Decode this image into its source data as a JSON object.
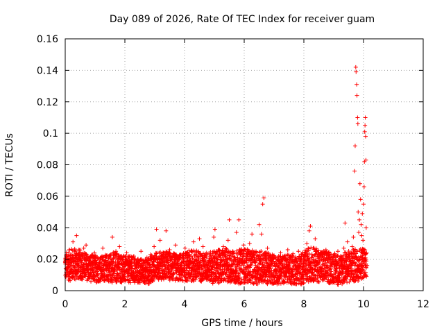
{
  "chart_data": {
    "type": "scatter",
    "title": "Day 089 of 2026, Rate Of TEC Index for receiver guam",
    "xlabel": "GPS time / hours",
    "ylabel": "ROTI / TECUs",
    "xlim": [
      0,
      12
    ],
    "ylim": [
      0,
      0.16
    ],
    "x_ticks": [
      0,
      2,
      4,
      6,
      8,
      10,
      12
    ],
    "x_tick_labels": [
      "0",
      "2",
      "4",
      "6",
      "8",
      "10",
      "12"
    ],
    "y_ticks": [
      0,
      0.02,
      0.04,
      0.06,
      0.08,
      0.1,
      0.12,
      0.14,
      0.16
    ],
    "y_tick_labels": [
      "0",
      "0.02",
      "0.04",
      "0.06",
      "0.08",
      "0.1",
      "0.12",
      "0.14",
      "0.16"
    ],
    "grid": true,
    "marker": "plus",
    "series": [
      {
        "name": "ROTI",
        "color": "#ff0000",
        "points": [
          [
            0.02,
            0.014
          ],
          [
            0.06,
            0.022
          ],
          [
            0.1,
            0.009
          ],
          [
            0.14,
            0.026
          ],
          [
            0.18,
            0.017
          ],
          [
            0.22,
            0.012
          ],
          [
            0.26,
            0.031
          ],
          [
            0.3,
            0.019
          ],
          [
            0.34,
            0.01
          ],
          [
            0.38,
            0.035
          ],
          [
            0.42,
            0.016
          ],
          [
            0.46,
            0.023
          ],
          [
            0.5,
            0.012
          ],
          [
            0.54,
            0.018
          ],
          [
            0.58,
            0.014
          ],
          [
            0.62,
            0.027
          ],
          [
            0.66,
            0.011
          ],
          [
            0.7,
            0.029
          ],
          [
            0.74,
            0.015
          ],
          [
            0.78,
            0.009
          ],
          [
            0.82,
            0.021
          ],
          [
            0.86,
            0.013
          ],
          [
            0.9,
            0.017
          ],
          [
            0.94,
            0.008
          ],
          [
            0.98,
            0.024
          ],
          [
            1.02,
            0.012
          ],
          [
            1.06,
            0.018
          ],
          [
            1.1,
            0.007
          ],
          [
            1.14,
            0.015
          ],
          [
            1.18,
            0.021
          ],
          [
            1.22,
            0.011
          ],
          [
            1.26,
            0.027
          ],
          [
            1.3,
            0.013
          ],
          [
            1.34,
            0.019
          ],
          [
            1.38,
            0.009
          ],
          [
            1.42,
            0.016
          ],
          [
            1.46,
            0.022
          ],
          [
            1.5,
            0.012
          ],
          [
            1.54,
            0.014
          ],
          [
            1.58,
            0.034
          ],
          [
            1.62,
            0.018
          ],
          [
            1.66,
            0.008
          ],
          [
            1.7,
            0.025
          ],
          [
            1.74,
            0.013
          ],
          [
            1.78,
            0.017
          ],
          [
            1.82,
            0.028
          ],
          [
            1.86,
            0.011
          ],
          [
            1.9,
            0.02
          ],
          [
            1.94,
            0.014
          ],
          [
            1.98,
            0.009
          ],
          [
            2.02,
            0.018
          ],
          [
            2.06,
            0.024
          ],
          [
            2.1,
            0.012
          ],
          [
            2.14,
            0.016
          ],
          [
            2.18,
            0.01
          ],
          [
            2.22,
            0.02
          ],
          [
            2.26,
            0.014
          ],
          [
            2.3,
            0.022
          ],
          [
            2.34,
            0.008
          ],
          [
            2.38,
            0.017
          ],
          [
            2.42,
            0.013
          ],
          [
            2.46,
            0.019
          ],
          [
            2.5,
            0.011
          ],
          [
            2.54,
            0.025
          ],
          [
            2.58,
            0.015
          ],
          [
            2.62,
            0.009
          ],
          [
            2.66,
            0.018
          ],
          [
            2.7,
            0.013
          ],
          [
            2.74,
            0.021
          ],
          [
            2.78,
            0.007
          ],
          [
            2.82,
            0.016
          ],
          [
            2.86,
            0.023
          ],
          [
            2.9,
            0.012
          ],
          [
            2.94,
            0.018
          ],
          [
            2.98,
            0.028
          ],
          [
            3.02,
            0.015
          ],
          [
            3.06,
            0.039
          ],
          [
            3.1,
            0.02
          ],
          [
            3.14,
            0.013
          ],
          [
            3.18,
            0.032
          ],
          [
            3.22,
            0.017
          ],
          [
            3.26,
            0.011
          ],
          [
            3.3,
            0.024
          ],
          [
            3.34,
            0.016
          ],
          [
            3.38,
            0.038
          ],
          [
            3.42,
            0.019
          ],
          [
            3.46,
            0.012
          ],
          [
            3.5,
            0.026
          ],
          [
            3.54,
            0.015
          ],
          [
            3.58,
            0.021
          ],
          [
            3.62,
            0.011
          ],
          [
            3.66,
            0.018
          ],
          [
            3.7,
            0.029
          ],
          [
            3.74,
            0.014
          ],
          [
            3.78,
            0.02
          ],
          [
            3.82,
            0.01
          ],
          [
            3.86,
            0.023
          ],
          [
            3.9,
            0.016
          ],
          [
            3.94,
            0.012
          ],
          [
            3.98,
            0.019
          ],
          [
            4.02,
            0.027
          ],
          [
            4.06,
            0.013
          ],
          [
            4.1,
            0.021
          ],
          [
            4.14,
            0.015
          ],
          [
            4.18,
            0.009
          ],
          [
            4.22,
            0.025
          ],
          [
            4.26,
            0.017
          ],
          [
            4.3,
            0.031
          ],
          [
            4.34,
            0.014
          ],
          [
            4.38,
            0.02
          ],
          [
            4.42,
            0.012
          ],
          [
            4.46,
            0.018
          ],
          [
            4.5,
            0.033
          ],
          [
            4.54,
            0.016
          ],
          [
            4.58,
            0.011
          ],
          [
            4.62,
            0.028
          ],
          [
            4.66,
            0.019
          ],
          [
            4.7,
            0.013
          ],
          [
            4.74,
            0.024
          ],
          [
            4.78,
            0.016
          ],
          [
            4.82,
            0.01
          ],
          [
            4.86,
            0.022
          ],
          [
            4.9,
            0.015
          ],
          [
            4.94,
            0.019
          ],
          [
            4.98,
            0.034
          ],
          [
            5.02,
            0.039
          ],
          [
            5.06,
            0.018
          ],
          [
            5.1,
            0.012
          ],
          [
            5.14,
            0.026
          ],
          [
            5.18,
            0.015
          ],
          [
            5.22,
            0.021
          ],
          [
            5.26,
            0.011
          ],
          [
            5.3,
            0.028
          ],
          [
            5.34,
            0.017
          ],
          [
            5.38,
            0.022
          ],
          [
            5.42,
            0.013
          ],
          [
            5.46,
            0.032
          ],
          [
            5.5,
            0.045
          ],
          [
            5.54,
            0.02
          ],
          [
            5.58,
            0.014
          ],
          [
            5.62,
            0.025
          ],
          [
            5.66,
            0.017
          ],
          [
            5.7,
            0.011
          ],
          [
            5.74,
            0.037
          ],
          [
            5.78,
            0.021
          ],
          [
            5.82,
            0.045
          ],
          [
            5.86,
            0.016
          ],
          [
            5.9,
            0.023
          ],
          [
            5.94,
            0.012
          ],
          [
            5.98,
            0.029
          ],
          [
            6.02,
            0.018
          ],
          [
            6.06,
            0.011
          ],
          [
            6.1,
            0.026
          ],
          [
            6.14,
            0.015
          ],
          [
            6.18,
            0.03
          ],
          [
            6.22,
            0.019
          ],
          [
            6.26,
            0.036
          ],
          [
            6.3,
            0.012
          ],
          [
            6.34,
            0.021
          ],
          [
            6.38,
            0.016
          ],
          [
            6.42,
            0.024
          ],
          [
            6.46,
            0.013
          ],
          [
            6.5,
            0.042
          ],
          [
            6.54,
            0.019
          ],
          [
            6.58,
            0.036
          ],
          [
            6.62,
            0.055
          ],
          [
            6.66,
            0.059
          ],
          [
            6.7,
            0.022
          ],
          [
            6.74,
            0.015
          ],
          [
            6.78,
            0.027
          ],
          [
            6.82,
            0.012
          ],
          [
            6.86,
            0.019
          ],
          [
            6.9,
            0.014
          ],
          [
            6.94,
            0.023
          ],
          [
            6.98,
            0.009
          ],
          [
            7.02,
            0.017
          ],
          [
            7.06,
            0.013
          ],
          [
            7.1,
            0.021
          ],
          [
            7.14,
            0.008
          ],
          [
            7.18,
            0.018
          ],
          [
            7.22,
            0.024
          ],
          [
            7.26,
            0.012
          ],
          [
            7.3,
            0.016
          ],
          [
            7.34,
            0.009
          ],
          [
            7.38,
            0.02
          ],
          [
            7.42,
            0.014
          ],
          [
            7.46,
            0.026
          ],
          [
            7.5,
            0.011
          ],
          [
            7.54,
            0.018
          ],
          [
            7.58,
            0.013
          ],
          [
            7.62,
            0.022
          ],
          [
            7.66,
            0.008
          ],
          [
            7.7,
            0.016
          ],
          [
            7.74,
            0.02
          ],
          [
            7.78,
            0.011
          ],
          [
            7.82,
            0.025
          ],
          [
            7.86,
            0.014
          ],
          [
            7.9,
            0.019
          ],
          [
            7.94,
            0.01
          ],
          [
            7.98,
            0.017
          ],
          [
            8.02,
            0.023
          ],
          [
            8.06,
            0.013
          ],
          [
            8.1,
            0.03
          ],
          [
            8.14,
            0.018
          ],
          [
            8.18,
            0.038
          ],
          [
            8.22,
            0.041
          ],
          [
            8.26,
            0.021
          ],
          [
            8.3,
            0.014
          ],
          [
            8.34,
            0.027
          ],
          [
            8.38,
            0.033
          ],
          [
            8.42,
            0.016
          ],
          [
            8.46,
            0.022
          ],
          [
            8.5,
            0.012
          ],
          [
            8.54,
            0.019
          ],
          [
            8.58,
            0.024
          ],
          [
            8.62,
            0.014
          ],
          [
            8.66,
            0.02
          ],
          [
            8.7,
            0.011
          ],
          [
            8.74,
            0.026
          ],
          [
            8.78,
            0.016
          ],
          [
            8.82,
            0.021
          ],
          [
            8.86,
            0.013
          ],
          [
            8.9,
            0.018
          ],
          [
            8.94,
            0.009
          ],
          [
            8.98,
            0.022
          ],
          [
            9.02,
            0.015
          ],
          [
            9.06,
            0.019
          ],
          [
            9.1,
            0.012
          ],
          [
            9.14,
            0.025
          ],
          [
            9.18,
            0.017
          ],
          [
            9.22,
            0.005
          ],
          [
            9.26,
            0.021
          ],
          [
            9.3,
            0.014
          ],
          [
            9.34,
            0.027
          ],
          [
            9.38,
            0.043
          ],
          [
            9.42,
            0.019
          ],
          [
            9.46,
            0.031
          ],
          [
            9.5,
            0.013
          ],
          [
            9.54,
            0.022
          ],
          [
            9.58,
            0.016
          ],
          [
            9.62,
            0.028
          ],
          [
            9.66,
            0.034
          ],
          [
            9.7,
            0.076
          ],
          [
            9.72,
            0.092
          ],
          [
            9.74,
            0.142
          ],
          [
            9.75,
            0.139
          ],
          [
            9.77,
            0.131
          ],
          [
            9.78,
            0.124
          ],
          [
            9.8,
            0.11
          ],
          [
            9.81,
            0.106
          ],
          [
            9.82,
            0.05
          ],
          [
            9.84,
            0.037
          ],
          [
            9.86,
            0.045
          ],
          [
            9.88,
            0.068
          ],
          [
            9.9,
            0.058
          ],
          [
            9.92,
            0.042
          ],
          [
            9.94,
            0.035
          ],
          [
            9.96,
            0.049
          ],
          [
            9.98,
            0.032
          ],
          [
            10.0,
            0.055
          ],
          [
            10.02,
            0.066
          ],
          [
            10.03,
            0.082
          ],
          [
            10.04,
            0.101
          ],
          [
            10.05,
            0.105
          ],
          [
            10.06,
            0.11
          ],
          [
            10.07,
            0.098
          ],
          [
            10.08,
            0.083
          ],
          [
            10.09,
            0.04
          ],
          [
            10.1,
            0.024
          ],
          [
            10.12,
            0.016
          ]
        ]
      }
    ],
    "band": {
      "x": [
        0.0,
        0.2,
        0.4,
        0.6,
        0.8,
        1.0,
        1.2,
        1.4,
        1.6,
        1.8,
        2.0,
        2.2,
        2.4,
        2.6,
        2.8,
        3.0,
        3.2,
        3.4,
        3.6,
        3.8,
        4.0,
        4.2,
        4.4,
        4.6,
        4.8,
        5.0,
        5.2,
        5.4,
        5.6,
        5.8,
        6.0,
        6.2,
        6.4,
        6.6,
        6.8,
        7.0,
        7.2,
        7.4,
        7.6,
        7.8,
        8.0,
        8.2,
        8.4,
        8.6,
        8.8,
        9.0,
        9.2,
        9.4,
        9.6,
        9.8,
        10.0,
        10.1
      ],
      "low": [
        0.007,
        0.006,
        0.007,
        0.007,
        0.006,
        0.005,
        0.006,
        0.006,
        0.005,
        0.005,
        0.005,
        0.005,
        0.004,
        0.005,
        0.004,
        0.007,
        0.007,
        0.007,
        0.006,
        0.006,
        0.006,
        0.006,
        0.005,
        0.006,
        0.006,
        0.004,
        0.005,
        0.005,
        0.005,
        0.004,
        0.005,
        0.005,
        0.004,
        0.005,
        0.004,
        0.004,
        0.004,
        0.005,
        0.004,
        0.004,
        0.004,
        0.006,
        0.006,
        0.005,
        0.004,
        0.005,
        0.003,
        0.005,
        0.005,
        0.006,
        0.008,
        0.009
      ],
      "high": [
        0.024,
        0.027,
        0.027,
        0.025,
        0.023,
        0.023,
        0.022,
        0.023,
        0.025,
        0.024,
        0.022,
        0.022,
        0.021,
        0.02,
        0.021,
        0.024,
        0.025,
        0.025,
        0.024,
        0.023,
        0.024,
        0.026,
        0.026,
        0.024,
        0.024,
        0.026,
        0.026,
        0.027,
        0.025,
        0.026,
        0.027,
        0.026,
        0.025,
        0.026,
        0.024,
        0.023,
        0.022,
        0.023,
        0.024,
        0.022,
        0.025,
        0.028,
        0.027,
        0.026,
        0.025,
        0.024,
        0.023,
        0.025,
        0.026,
        0.027,
        0.028,
        0.025
      ]
    }
  }
}
